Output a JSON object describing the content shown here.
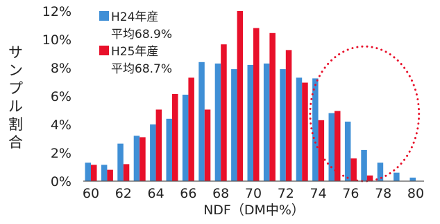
{
  "chart_data": {
    "type": "bar",
    "title": "",
    "xlabel": "NDF（DM中%）",
    "ylabel": "サンプル割合",
    "ylim": [
      0,
      12
    ],
    "yticks": [
      "0%",
      "2%",
      "4%",
      "6%",
      "8%",
      "10%",
      "12%"
    ],
    "x": [
      60,
      61,
      62,
      63,
      64,
      65,
      66,
      67,
      68,
      69,
      70,
      71,
      72,
      73,
      74,
      75,
      76,
      77,
      78,
      79,
      80
    ],
    "xticks": [
      "60",
      "62",
      "64",
      "66",
      "68",
      "70",
      "72",
      "74",
      "76",
      "78",
      "80"
    ],
    "series": [
      {
        "name": "H24年産",
        "note": "平均68.9%",
        "color": "#3f8fd6",
        "values": [
          1.3,
          1.15,
          2.65,
          3.2,
          4.0,
          4.4,
          6.1,
          8.4,
          8.3,
          7.9,
          8.2,
          8.3,
          7.9,
          7.3,
          7.25,
          4.8,
          4.2,
          2.2,
          1.3,
          0.6,
          0.25
        ]
      },
      {
        "name": "H25年産",
        "note": "平均68.7%",
        "color": "#e8102a",
        "values": [
          1.15,
          0.8,
          1.2,
          3.1,
          5.05,
          6.15,
          7.3,
          5.05,
          9.65,
          12.0,
          10.8,
          10.45,
          9.25,
          6.95,
          4.3,
          4.95,
          1.6,
          0.4,
          0,
          0,
          0
        ]
      }
    ],
    "legend_position": "top-left",
    "grid": false,
    "annotation": {
      "type": "dotted-ellipse",
      "color": "#e8102a",
      "x_range": [
        73.5,
        80.2
      ],
      "y_range": [
        0,
        9.5
      ]
    }
  }
}
